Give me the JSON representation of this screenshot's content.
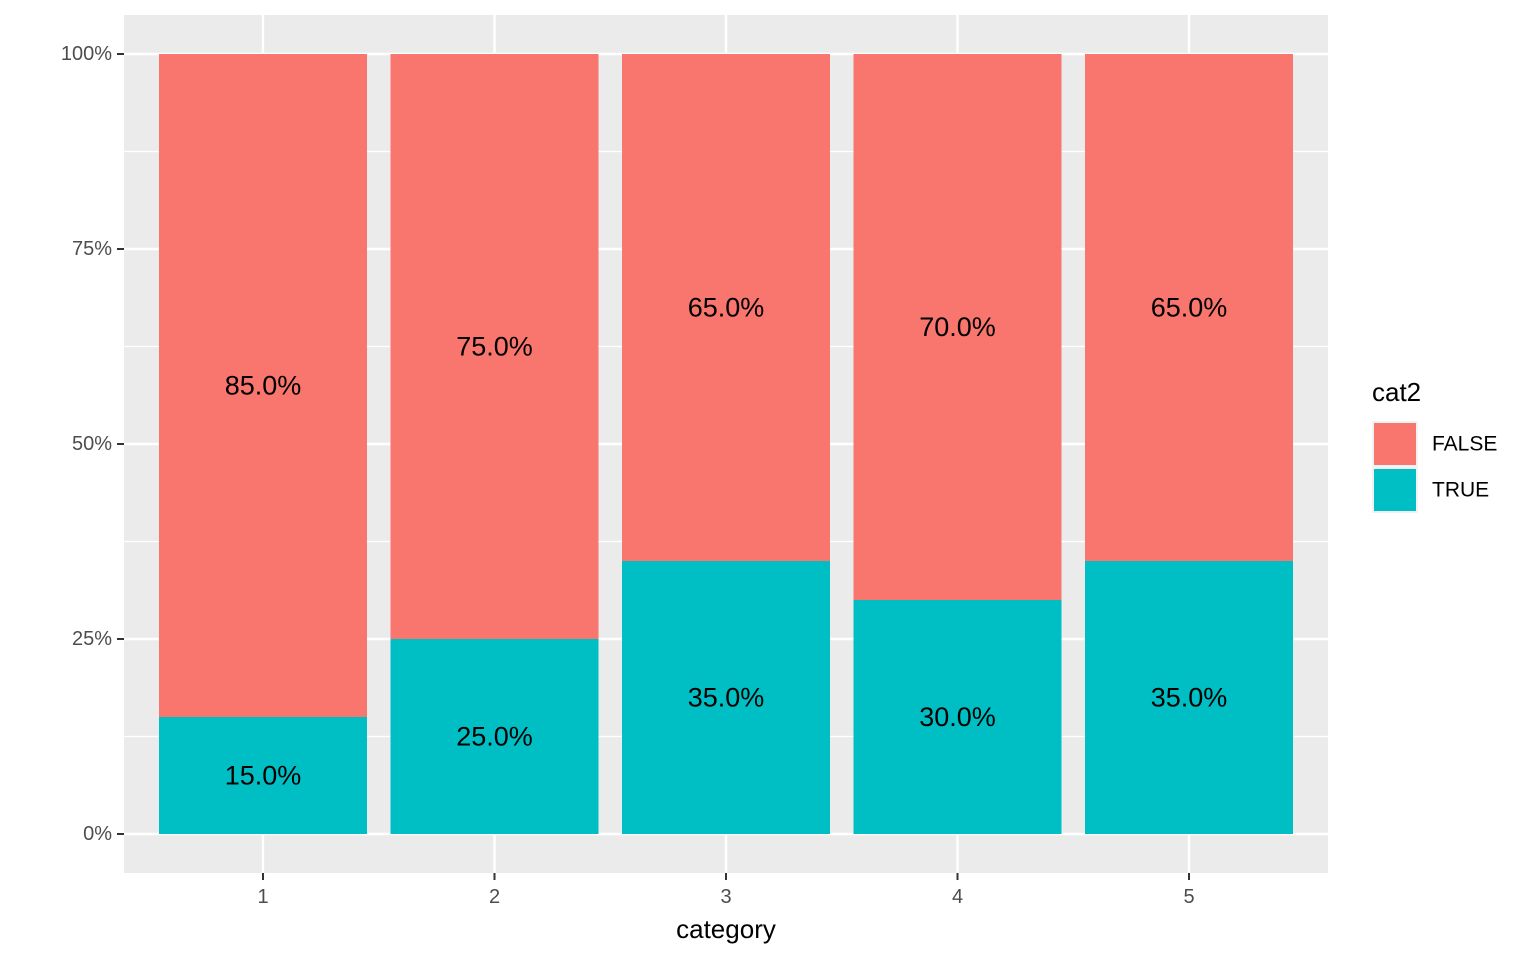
{
  "chart_data": {
    "type": "bar",
    "stacked": true,
    "normalized": true,
    "categories": [
      "1",
      "2",
      "3",
      "4",
      "5"
    ],
    "series": [
      {
        "name": "FALSE",
        "values": [
          85.0,
          75.0,
          65.0,
          70.0,
          65.0
        ],
        "labels": [
          "85.0%",
          "75.0%",
          "65.0%",
          "70.0%",
          "65.0%"
        ],
        "color": "#F8766D"
      },
      {
        "name": "TRUE",
        "values": [
          15.0,
          25.0,
          35.0,
          30.0,
          35.0
        ],
        "labels": [
          "15.0%",
          "25.0%",
          "35.0%",
          "30.0%",
          "35.0%"
        ],
        "color": "#00BFC4"
      }
    ],
    "xlabel": "category",
    "ylabel": "",
    "ylim": [
      0,
      100
    ],
    "yticks": [
      0,
      25,
      50,
      75,
      100
    ],
    "ytick_labels": [
      "0%",
      "25%",
      "50%",
      "75%",
      "100%"
    ],
    "legend": {
      "title": "cat2",
      "position": "right"
    },
    "grid": true,
    "panel_background": "#EBEBEB",
    "grid_color": "#FFFFFF"
  }
}
